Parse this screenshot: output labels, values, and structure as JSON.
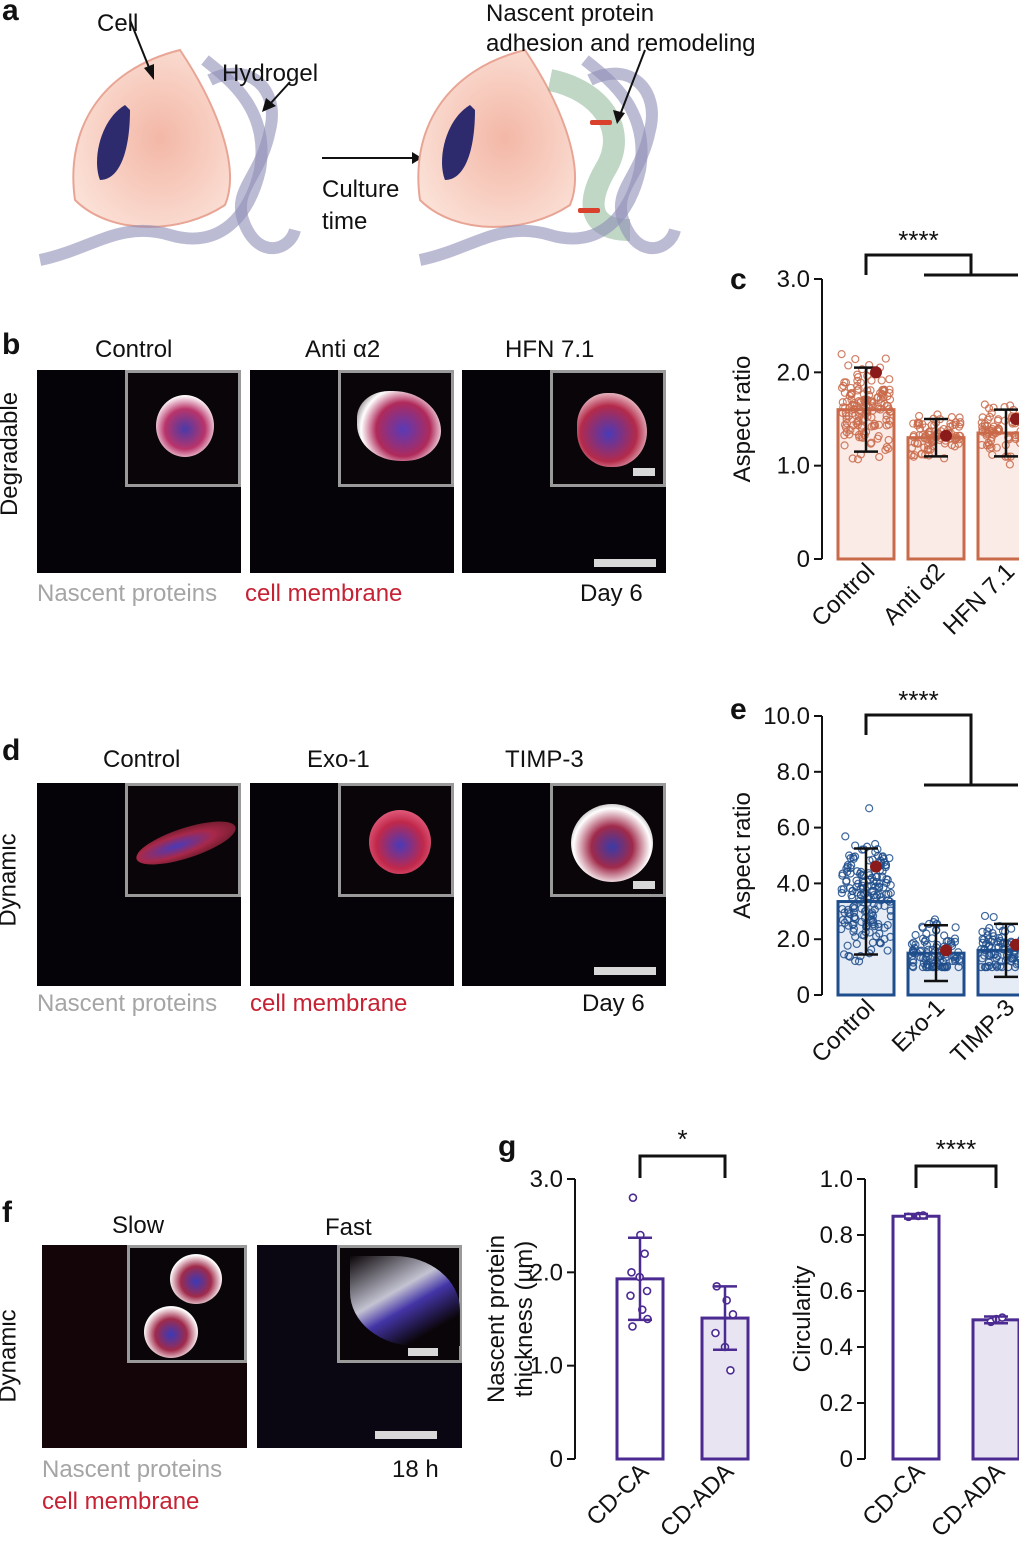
{
  "panels": {
    "a": {
      "label": "a",
      "cell": "Cell",
      "hydrogel": "Hydrogel",
      "nascent_line1": "Nascent protein",
      "nascent_line2": "adhesion and remodeling",
      "culture_line1": "Culture",
      "culture_line2": "time"
    },
    "b": {
      "label": "b",
      "row": "Degradable",
      "cols": [
        "Control",
        "Anti α2",
        "HFN 7.1"
      ],
      "legend_grey": "Nascent proteins",
      "legend_red": "cell membrane",
      "day": "Day 6"
    },
    "d": {
      "label": "d",
      "row": "Dynamic",
      "cols": [
        "Control",
        "Exo-1",
        "TIMP-3"
      ],
      "legend_grey": "Nascent proteins",
      "legend_red": "cell membrane",
      "day": "Day 6"
    },
    "f": {
      "label": "f",
      "row": "Dynamic",
      "cols": [
        "Slow",
        "Fast"
      ],
      "legend_grey": "Nascent proteins",
      "legend_red": "cell membrane",
      "time": "18 h"
    },
    "c": {
      "label": "c"
    },
    "e": {
      "label": "e"
    },
    "g": {
      "label": "g"
    }
  },
  "chart_data": [
    {
      "id": "c",
      "type": "bar",
      "ylabel": "Aspect ratio",
      "yticks": [
        "0",
        "1.0",
        "2.0",
        "3.0"
      ],
      "ylim": [
        0,
        3.0
      ],
      "categories": [
        "Control",
        "Anti α2",
        "HFN 7.1"
      ],
      "values": [
        1.6,
        1.3,
        1.35
      ],
      "sd": [
        0.45,
        0.2,
        0.25
      ],
      "means_highlight": [
        2.0,
        1.32,
        1.5
      ],
      "significance": "****",
      "color": "#c96a4a",
      "fill": "#fbebe6"
    },
    {
      "id": "e",
      "type": "bar",
      "ylabel": "Aspect ratio",
      "yticks": [
        "0",
        "2.0",
        "4.0",
        "6.0",
        "8.0",
        "10.0"
      ],
      "ylim": [
        0,
        10.0
      ],
      "categories": [
        "Control",
        "Exo-1",
        "TIMP-3"
      ],
      "values": [
        3.35,
        1.5,
        1.6
      ],
      "sd": [
        1.9,
        1.0,
        0.95
      ],
      "means_highlight": [
        4.6,
        1.6,
        1.8
      ],
      "significance": "****",
      "color": "#1f4e8c",
      "fill": "#e6ecf5"
    },
    {
      "id": "g1",
      "type": "bar",
      "ylabel_line1": "Nascent protein",
      "ylabel_line2": "thickness (µm)",
      "yticks": [
        "0",
        "1.0",
        "2.0",
        "3.0"
      ],
      "ylim": [
        0,
        3.0
      ],
      "categories": [
        "CD-CA",
        "CD-ADA"
      ],
      "values": [
        1.93,
        1.51
      ],
      "sd": [
        0.44,
        0.34
      ],
      "points": [
        [
          2.8,
          2.4,
          2.2,
          2.0,
          1.95,
          1.8,
          1.75,
          1.6,
          1.5,
          1.42
        ],
        [
          1.85,
          1.7,
          1.55,
          1.35,
          1.2,
          0.95
        ]
      ],
      "significance": "*",
      "color": "#4b2a91",
      "fills": [
        "#ffffff",
        "#e8e4f2"
      ]
    },
    {
      "id": "g2",
      "type": "bar",
      "ylabel": "Circularity",
      "yticks": [
        "0",
        "0.2",
        "0.4",
        "0.6",
        "0.8",
        "1.0"
      ],
      "ylim": [
        0,
        1.0
      ],
      "categories": [
        "CD-CA",
        "CD-ADA"
      ],
      "values": [
        0.867,
        0.497
      ],
      "sd": [
        0.008,
        0.012
      ],
      "points": [
        [
          0.865,
          0.868,
          0.87
        ],
        [
          0.49,
          0.5,
          0.505
        ]
      ],
      "significance": "****",
      "color": "#4b2a91",
      "fills": [
        "#ffffff",
        "#e8e4f2"
      ]
    }
  ]
}
